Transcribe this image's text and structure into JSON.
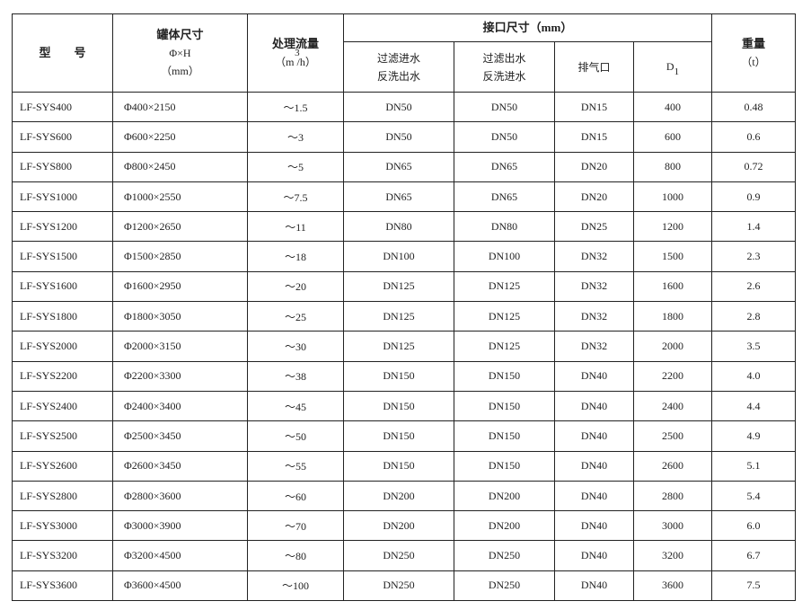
{
  "header": {
    "model": "型　　号",
    "tank_title": "罐体尺寸",
    "tank_formula": "Φ×H",
    "tank_unit": "（mm）",
    "flow_title": "处理流量",
    "flow_unit_sup": "3",
    "flow_unit": "（m /h）",
    "ports_title": "接口尺寸（mm）",
    "port1_line1": "过滤进水",
    "port1_line2": "反洗出水",
    "port2_line1": "过滤出水",
    "port2_line2": "反洗进水",
    "port3": "排气口",
    "port4": "D",
    "port4_sub": "1",
    "weight_title": "重量",
    "weight_unit": "（t）"
  },
  "rows": [
    [
      "LF-SYS400",
      "Φ400×2150",
      "～1.5",
      "DN50",
      "DN50",
      "DN15",
      "400",
      "0.48"
    ],
    [
      "LF-SYS600",
      "Φ600×2250",
      "～3",
      "DN50",
      "DN50",
      "DN15",
      "600",
      "0.6"
    ],
    [
      "LF-SYS800",
      "Φ800×2450",
      "～5",
      "DN65",
      "DN65",
      "DN20",
      "800",
      "0.72"
    ],
    [
      "LF-SYS1000",
      "Φ1000×2550",
      "～7.5",
      "DN65",
      "DN65",
      "DN20",
      "1000",
      "0.9"
    ],
    [
      "LF-SYS1200",
      "Φ1200×2650",
      "～11",
      "DN80",
      "DN80",
      "DN25",
      "1200",
      "1.4"
    ],
    [
      "LF-SYS1500",
      "Φ1500×2850",
      "～18",
      "DN100",
      "DN100",
      "DN32",
      "1500",
      "2.3"
    ],
    [
      "LF-SYS1600",
      "Φ1600×2950",
      "～20",
      "DN125",
      "DN125",
      "DN32",
      "1600",
      "2.6"
    ],
    [
      "LF-SYS1800",
      "Φ1800×3050",
      "～25",
      "DN125",
      "DN125",
      "DN32",
      "1800",
      "2.8"
    ],
    [
      "LF-SYS2000",
      "Φ2000×3150",
      "～30",
      "DN125",
      "DN125",
      "DN32",
      "2000",
      "3.5"
    ],
    [
      "LF-SYS2200",
      "Φ2200×3300",
      "～38",
      "DN150",
      "DN150",
      "DN40",
      "2200",
      "4.0"
    ],
    [
      "LF-SYS2400",
      "Φ2400×3400",
      "～45",
      "DN150",
      "DN150",
      "DN40",
      "2400",
      "4.4"
    ],
    [
      "LF-SYS2500",
      "Φ2500×3450",
      "～50",
      "DN150",
      "DN150",
      "DN40",
      "2500",
      "4.9"
    ],
    [
      "LF-SYS2600",
      "Φ2600×3450",
      "～55",
      "DN150",
      "DN150",
      "DN40",
      "2600",
      "5.1"
    ],
    [
      "LF-SYS2800",
      "Φ2800×3600",
      "～60",
      "DN200",
      "DN200",
      "DN40",
      "2800",
      "5.4"
    ],
    [
      "LF-SYS3000",
      "Φ3000×3900",
      "～70",
      "DN200",
      "DN200",
      "DN40",
      "3000",
      "6.0"
    ],
    [
      "LF-SYS3200",
      "Φ3200×4500",
      "～80",
      "DN250",
      "DN250",
      "DN40",
      "3200",
      "6.7"
    ],
    [
      "LF-SYS3600",
      "Φ3600×4500",
      "～100",
      "DN250",
      "DN250",
      "DN40",
      "3600",
      "7.5"
    ]
  ]
}
